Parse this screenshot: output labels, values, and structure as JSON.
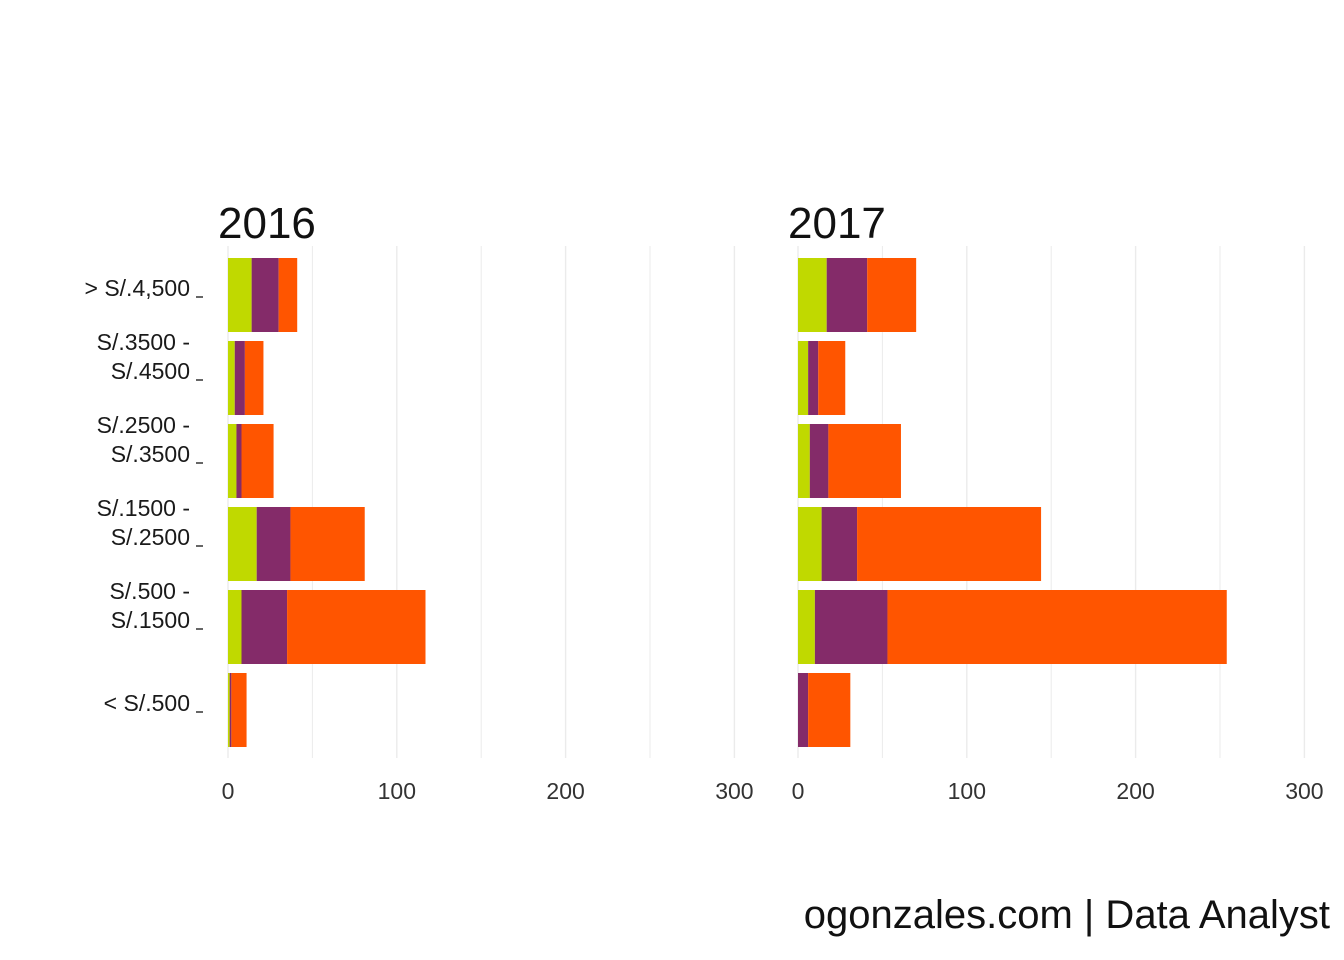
{
  "caption": "ogonzales.com | Data Analyst",
  "colors": {
    "seg1": "#c0d900",
    "seg2": "#842b69",
    "seg3": "#ff5500",
    "grid": "#ebebeb"
  },
  "chart_data": {
    "type": "bar",
    "orientation": "horizontal",
    "stacked": true,
    "categories": [
      [
        "> S/.4,500"
      ],
      [
        "S/.3500 -",
        "S/.4500"
      ],
      [
        "S/.2500 -",
        "S/.3500"
      ],
      [
        "S/.1500 -",
        "S/.2500"
      ],
      [
        "S/.500 -",
        "S/.1500"
      ],
      [
        "< S/.500"
      ]
    ],
    "xlim": [
      0,
      300
    ],
    "x_ticks": [
      0,
      100,
      200,
      300
    ],
    "grid": "vertical",
    "legend": "none",
    "panels": [
      {
        "title": "2016",
        "series": [
          {
            "values": [
              14,
              4,
              5,
              17,
              8,
              1
            ]
          },
          {
            "values": [
              16,
              6,
              3,
              20,
              27,
              1
            ]
          },
          {
            "values": [
              11,
              11,
              19,
              44,
              82,
              9
            ]
          }
        ]
      },
      {
        "title": "2017",
        "series": [
          {
            "values": [
              17,
              6,
              7,
              14,
              10,
              0
            ]
          },
          {
            "values": [
              24,
              6,
              11,
              21,
              43,
              6
            ]
          },
          {
            "values": [
              29,
              16,
              43,
              109,
              201,
              25
            ]
          }
        ]
      }
    ]
  }
}
